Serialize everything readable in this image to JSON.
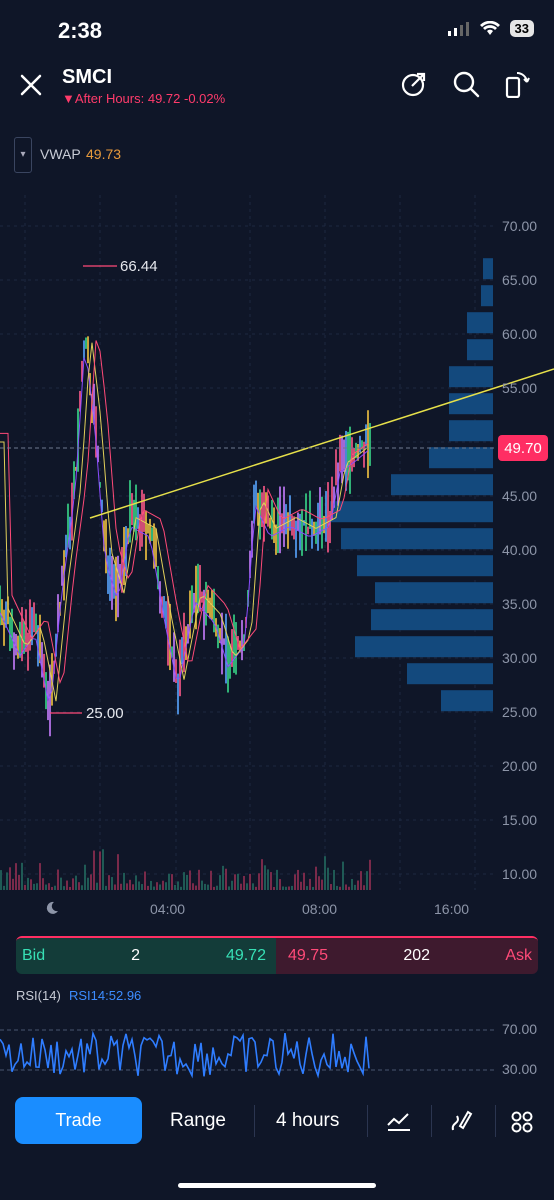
{
  "status_bar": {
    "time": "2:38",
    "battery": "33"
  },
  "header": {
    "ticker": "SMCI",
    "after_hours": "After Hours: 49.72 -0.02%"
  },
  "indicator": {
    "name": "VWAP",
    "value": "49.73"
  },
  "price_axis": [
    "70.00",
    "65.00",
    "60.00",
    "55.00",
    "50.00",
    "45.00",
    "40.00",
    "35.00",
    "30.00",
    "25.00",
    "20.00",
    "15.00",
    "10.00"
  ],
  "time_axis": [
    "04:00",
    "08:00",
    "16:00"
  ],
  "price_tag": "49.70",
  "annotations": {
    "high": "66.44",
    "low": "25.00"
  },
  "order_book": {
    "bid_label": "Bid",
    "bid_size": "2",
    "bid_price": "49.72",
    "ask_price": "49.75",
    "ask_size": "202",
    "ask_label": "Ask"
  },
  "rsi": {
    "label": "RSI(14)",
    "value": "RSI14:52.96",
    "levels": [
      "70.00",
      "30.00"
    ]
  },
  "toolbar": {
    "trade": "Trade",
    "range": "Range",
    "interval": "4 hours"
  },
  "colors": {
    "accent": "#1a8dff",
    "bid": "#37e0b5",
    "ask": "#ff4a78",
    "vwap": "#e89a3c",
    "trendline": "#e6e04a"
  }
}
